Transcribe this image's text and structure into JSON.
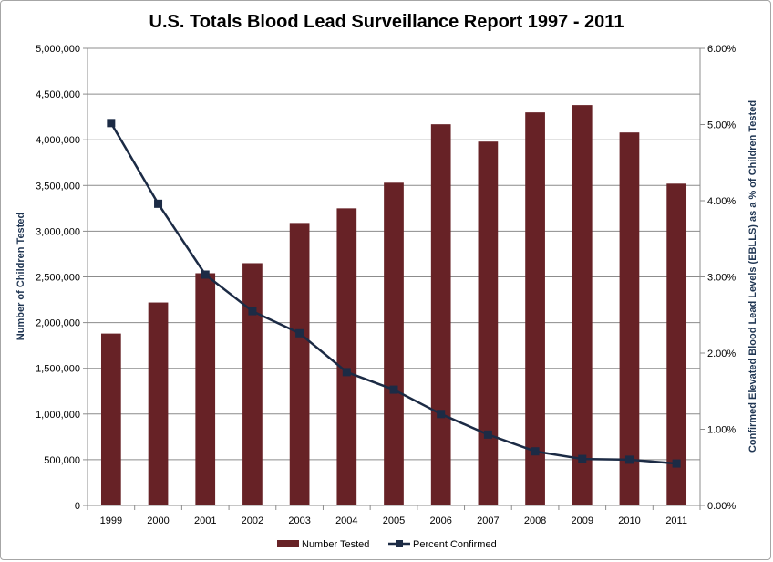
{
  "chart_data": {
    "type": "bar",
    "title": "U.S. Totals Blood Lead Surveillance Report 1997 - 2011",
    "categories": [
      "1999",
      "2000",
      "2001",
      "2002",
      "2003",
      "2004",
      "2005",
      "2006",
      "2007",
      "2008",
      "2009",
      "2010",
      "2011"
    ],
    "ylabel": "Number of Children Tested",
    "y2label": "Confirmed Elevated Blood Lead Levels (EBLLS) as a % of Children Tested",
    "ylim": [
      0,
      5000000
    ],
    "y2lim": [
      0,
      6
    ],
    "yticks": [
      "0",
      "500,000",
      "1,000,000",
      "1,500,000",
      "2,000,000",
      "2,500,000",
      "3,000,000",
      "3,500,000",
      "4,000,000",
      "4,500,000",
      "5,000,000"
    ],
    "y2ticks": [
      "0.00%",
      "1.00%",
      "2.00%",
      "3.00%",
      "4.00%",
      "5.00%",
      "6.00%"
    ],
    "grid": true,
    "legend_position": "bottom",
    "series": [
      {
        "name": "Number Tested",
        "type": "bar",
        "axis": "left",
        "color": "#672226",
        "values": [
          1880000,
          2220000,
          2540000,
          2650000,
          3090000,
          3250000,
          3530000,
          4170000,
          3980000,
          4300000,
          4380000,
          4080000,
          3520000
        ]
      },
      {
        "name": "Percent Confirmed",
        "type": "line",
        "axis": "right",
        "color": "#1c2b45",
        "values": [
          5.02,
          3.96,
          3.03,
          2.55,
          2.26,
          1.75,
          1.52,
          1.2,
          0.93,
          0.71,
          0.61,
          0.6,
          0.55
        ]
      }
    ]
  }
}
